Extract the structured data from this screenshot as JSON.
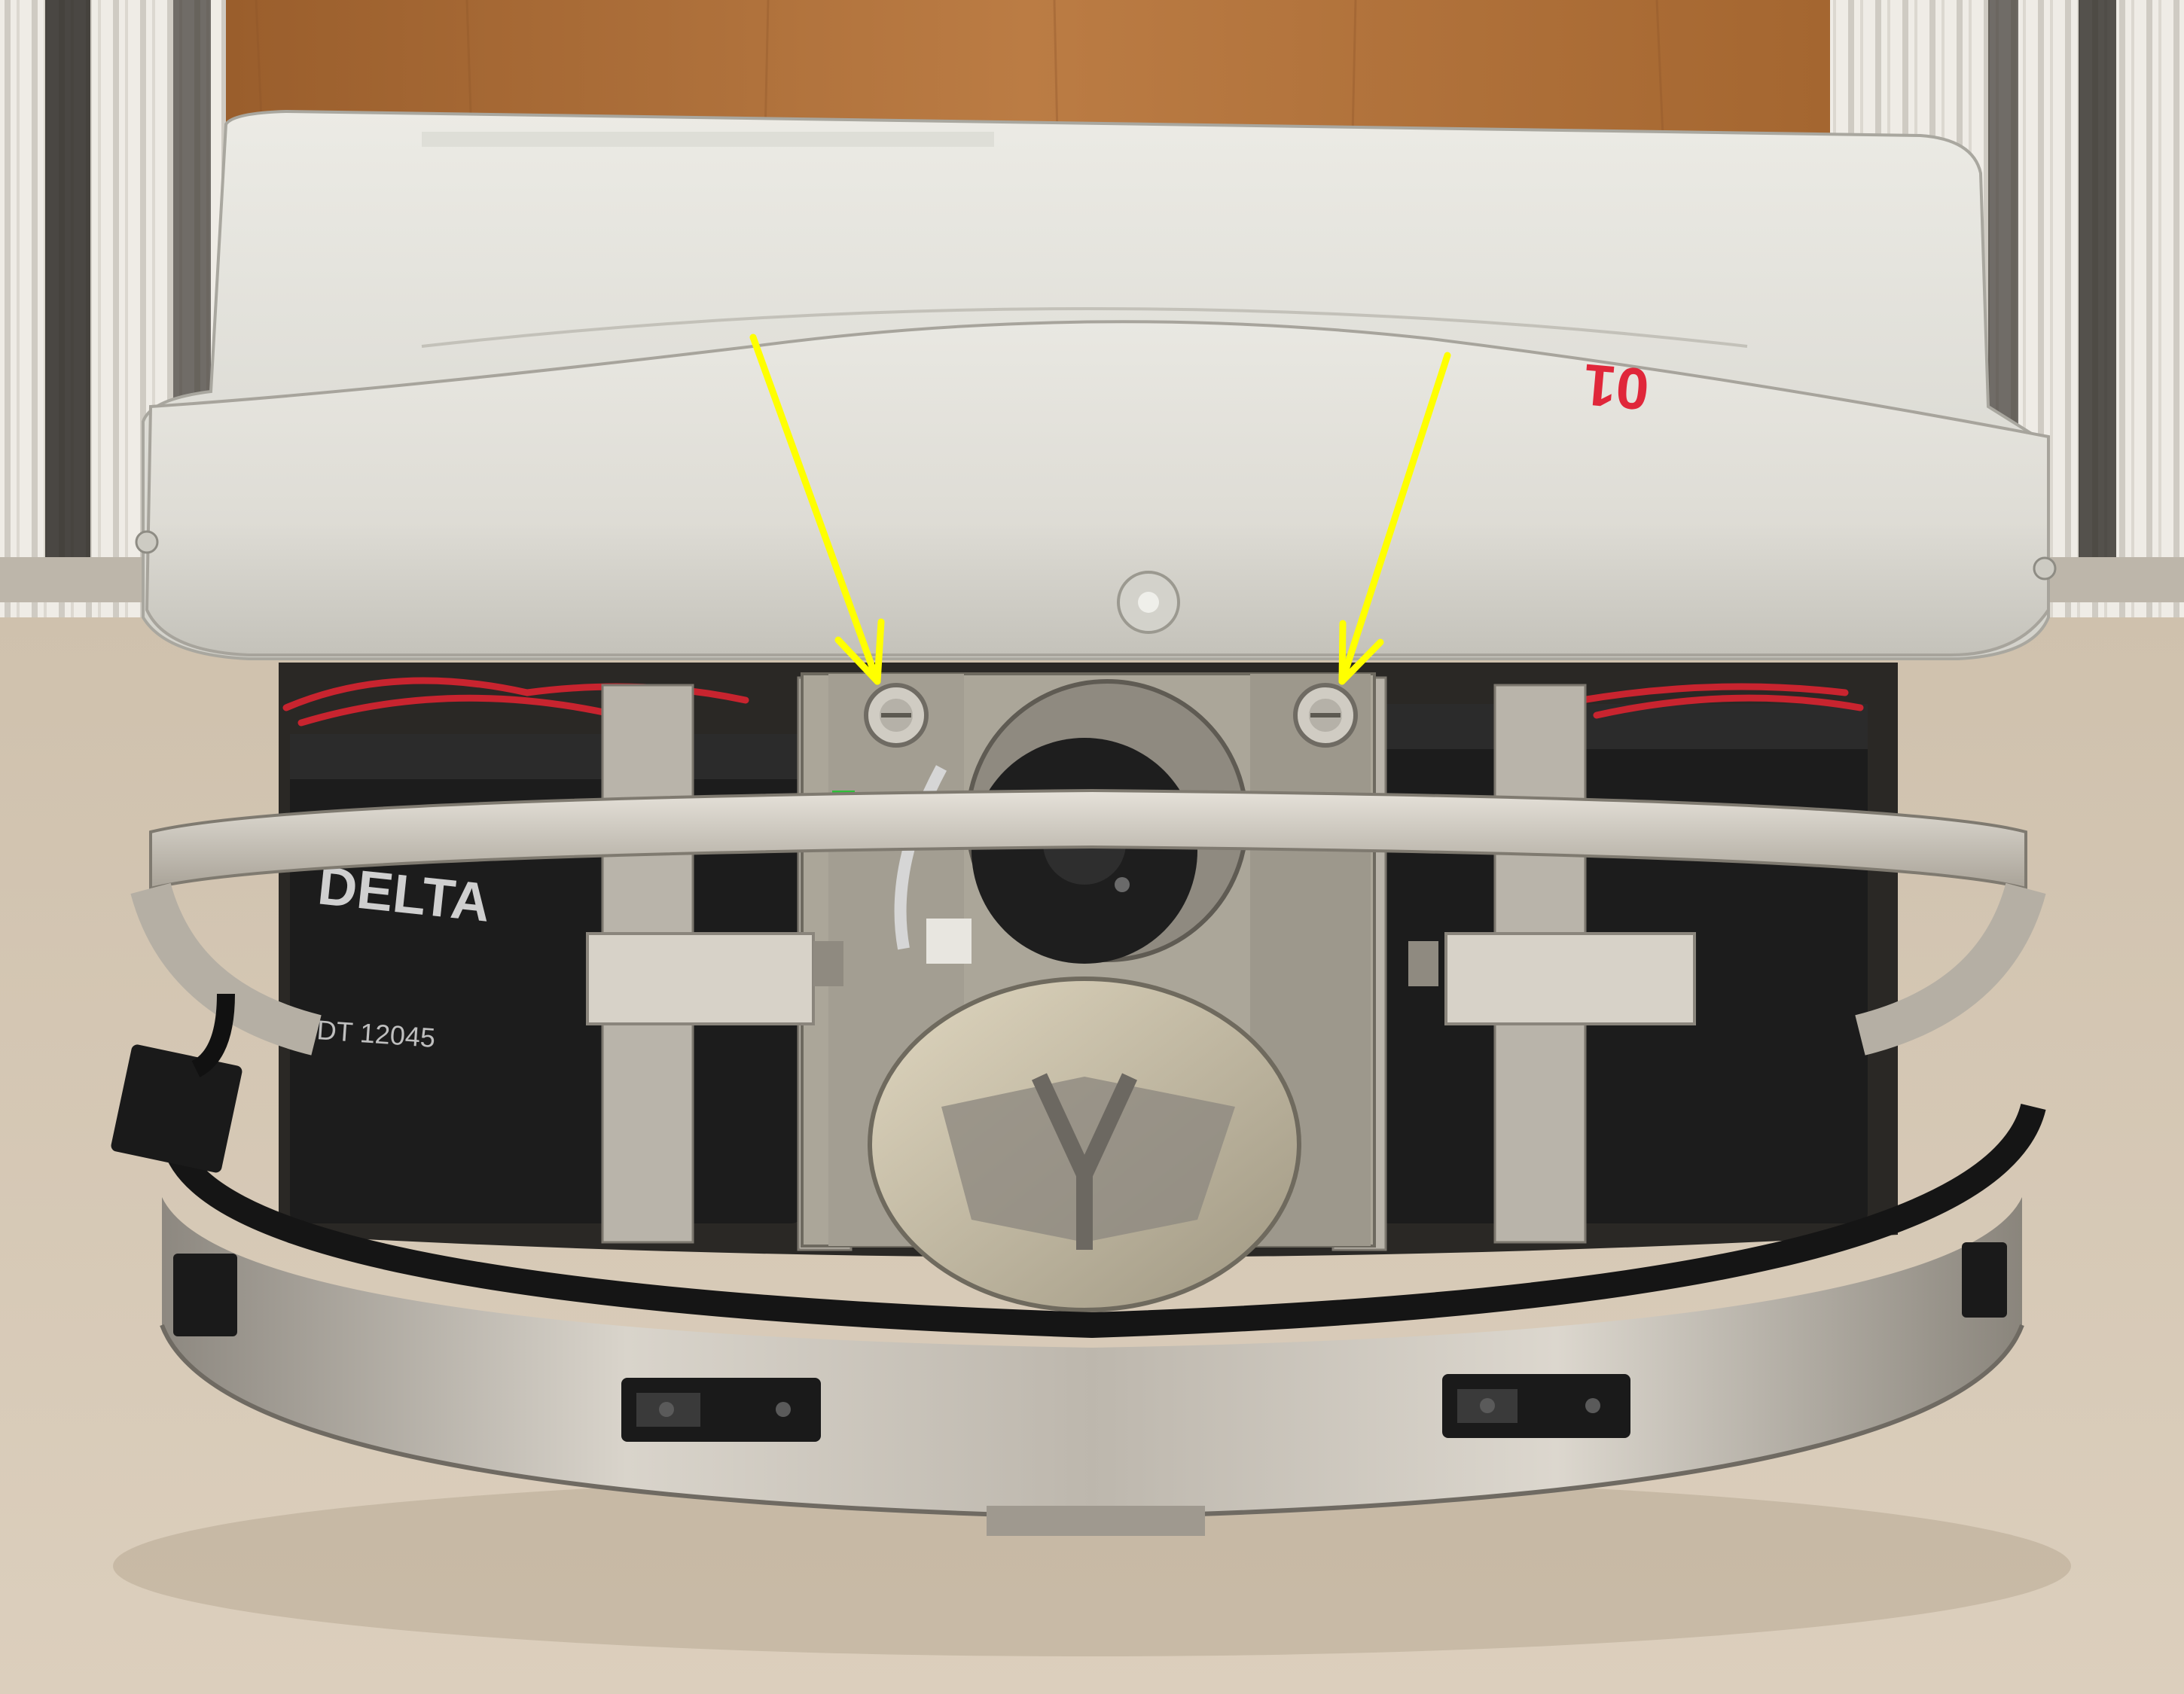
{
  "photo": {
    "subject": "mobile robot base",
    "annotation_arrow_color": "#ffff00",
    "label_on_cover": "01",
    "battery_label": "DELTA",
    "battery_model": "DT 12045",
    "colors": {
      "wall_wood": "#b5773f",
      "floor": "#d6c7b3",
      "cover": "#e4e3dc",
      "steel": "#cfcac1",
      "battery": "#1c1c1c",
      "bumper": "#151515",
      "wheel": "#d2c8ae",
      "marker_red": "#e0273a"
    },
    "arrows": [
      {
        "name": "left-arrow",
        "target": "left-screw"
      },
      {
        "name": "right-arrow",
        "target": "right-screw"
      }
    ]
  }
}
